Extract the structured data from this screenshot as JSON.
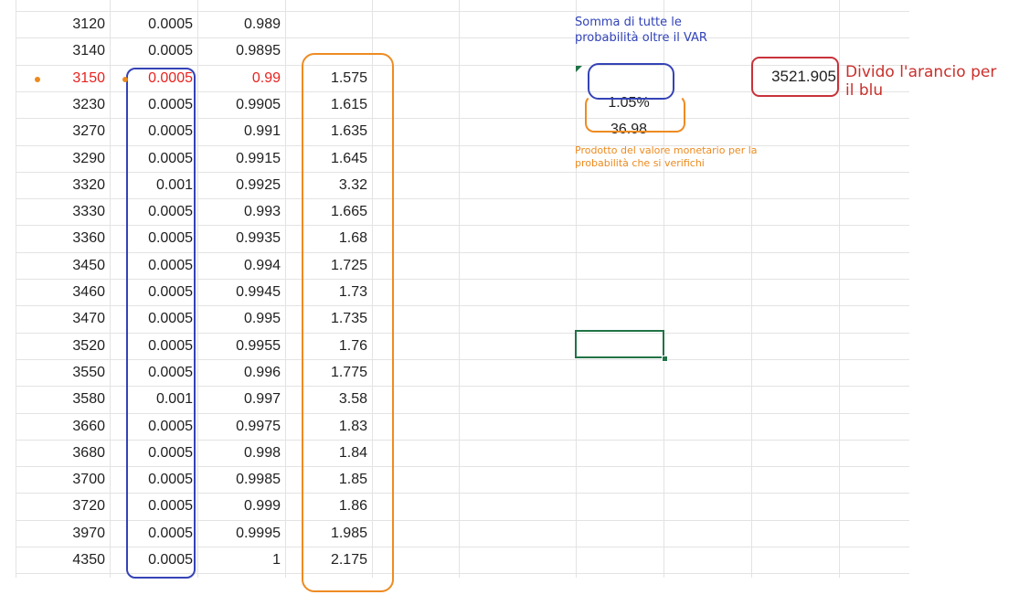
{
  "rows": [
    {
      "a": "3120",
      "b": "0.0005",
      "c": "0.989",
      "d": ""
    },
    {
      "a": "3140",
      "b": "0.0005",
      "c": "0.9895",
      "d": ""
    },
    {
      "a": "3150",
      "b": "0.0005",
      "c": "0.99",
      "d": "1.575"
    },
    {
      "a": "3230",
      "b": "0.0005",
      "c": "0.9905",
      "d": "1.615"
    },
    {
      "a": "3270",
      "b": "0.0005",
      "c": "0.991",
      "d": "1.635"
    },
    {
      "a": "3290",
      "b": "0.0005",
      "c": "0.9915",
      "d": "1.645"
    },
    {
      "a": "3320",
      "b": "0.001",
      "c": "0.9925",
      "d": "3.32"
    },
    {
      "a": "3330",
      "b": "0.0005",
      "c": "0.993",
      "d": "1.665"
    },
    {
      "a": "3360",
      "b": "0.0005",
      "c": "0.9935",
      "d": "1.68"
    },
    {
      "a": "3450",
      "b": "0.0005",
      "c": "0.994",
      "d": "1.725"
    },
    {
      "a": "3460",
      "b": "0.0005",
      "c": "0.9945",
      "d": "1.73"
    },
    {
      "a": "3470",
      "b": "0.0005",
      "c": "0.995",
      "d": "1.735"
    },
    {
      "a": "3520",
      "b": "0.0005",
      "c": "0.9955",
      "d": "1.76"
    },
    {
      "a": "3550",
      "b": "0.0005",
      "c": "0.996",
      "d": "1.775"
    },
    {
      "a": "3580",
      "b": "0.001",
      "c": "0.997",
      "d": "3.58"
    },
    {
      "a": "3660",
      "b": "0.0005",
      "c": "0.9975",
      "d": "1.83"
    },
    {
      "a": "3680",
      "b": "0.0005",
      "c": "0.998",
      "d": "1.84"
    },
    {
      "a": "3700",
      "b": "0.0005",
      "c": "0.9985",
      "d": "1.85"
    },
    {
      "a": "3720",
      "b": "0.0005",
      "c": "0.999",
      "d": "1.86"
    },
    {
      "a": "3970",
      "b": "0.0005",
      "c": "0.9995",
      "d": "1.985"
    },
    {
      "a": "4350",
      "b": "0.0005",
      "c": "1",
      "d": "2.175"
    }
  ],
  "highlight_row": 2,
  "cells": {
    "sum_probability": "1.05%",
    "product_value": "36.98",
    "result": "3521.905"
  },
  "annotations": {
    "blue_note": "Somma di tutte le\nprobabilità oltre il VAR",
    "red_note": "Divido l'arancio per\nil blu",
    "orange_note": "Prodotto del valore monetario per la\nprobabilità che si verifichi"
  },
  "colors": {
    "highlight_text": "#e8231f",
    "blue_ink": "#3543b6",
    "orange_ink": "#ee8b22",
    "red_ink": "#c8323a",
    "selection": "#217346"
  }
}
